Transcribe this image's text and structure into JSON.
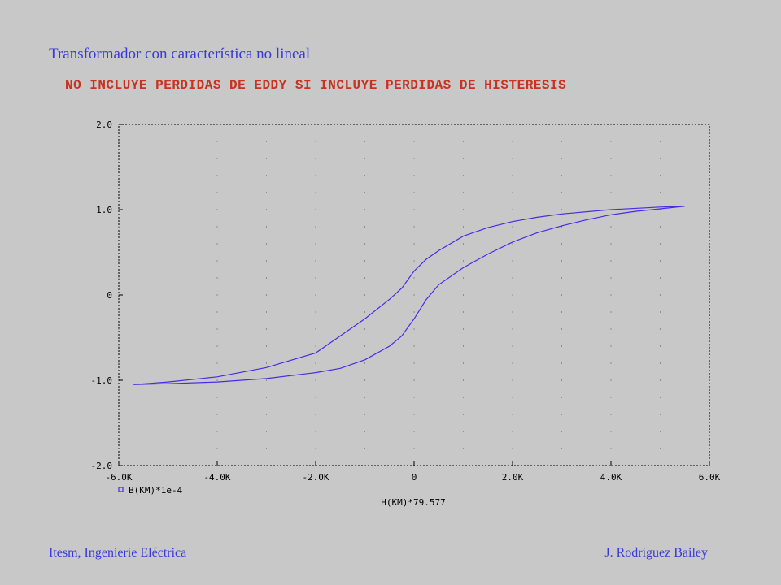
{
  "slide_title": "Transformador con característica  no lineal",
  "footer": {
    "left": "Itesm, Ingenieríe Eléctrica",
    "right": "J. Rodríguez Bailey"
  },
  "colors": {
    "background": "#c8c8c8",
    "curve": "#4a2ae8",
    "title": "#3a3ad8",
    "subtitle": "#c8321e"
  },
  "chart_data": {
    "type": "line",
    "title": "NO INCLUYE PERDIDAS DE EDDY SI INCLUYE PERDIDAS DE HISTERESIS",
    "xlabel": "H(KM)*79.577",
    "ylabel": "",
    "xlim": [
      -6000,
      6000
    ],
    "ylim": [
      -2.0,
      2.0
    ],
    "x_ticks": [
      -6000,
      -4000,
      -2000,
      0,
      2000,
      4000,
      6000
    ],
    "x_tick_labels": [
      "-6.0K",
      "-4.0K",
      "-2.0K",
      "0",
      "2.0K",
      "4.0K",
      "6.0K"
    ],
    "y_ticks": [
      -2.0,
      -1.0,
      0,
      1.0,
      2.0
    ],
    "y_tick_labels": [
      "-2.0",
      "-1.0",
      "0",
      "1.0",
      "2.0"
    ],
    "grid": "dotted",
    "legend_placement": "bottom-left",
    "series": [
      {
        "name": "B(KM)*1e-4",
        "x": [
          -5700,
          -5000,
          -4000,
          -3000,
          -2000,
          -1500,
          -1000,
          -500,
          -250,
          0,
          250,
          500,
          1000,
          1500,
          2000,
          2500,
          3000,
          3500,
          4000,
          4500,
          5000,
          5500,
          5500,
          5000,
          4000,
          3000,
          2500,
          2000,
          1500,
          1000,
          500,
          250,
          0,
          -250,
          -500,
          -1000,
          -1500,
          -2000,
          -3000,
          -4000,
          -5000,
          -5700
        ],
        "y": [
          -1.05,
          -1.04,
          -1.02,
          -0.98,
          -0.91,
          -0.86,
          -0.76,
          -0.6,
          -0.48,
          -0.28,
          -0.05,
          0.12,
          0.32,
          0.48,
          0.62,
          0.73,
          0.81,
          0.88,
          0.94,
          0.98,
          1.01,
          1.04,
          1.04,
          1.03,
          1.0,
          0.95,
          0.91,
          0.86,
          0.79,
          0.69,
          0.52,
          0.42,
          0.28,
          0.08,
          -0.05,
          -0.28,
          -0.48,
          -0.68,
          -0.85,
          -0.96,
          -1.02,
          -1.05
        ]
      }
    ]
  }
}
